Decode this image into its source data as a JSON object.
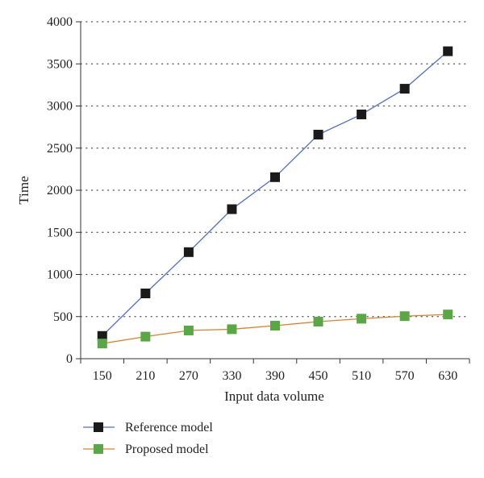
{
  "chart_data": {
    "type": "line",
    "title": "",
    "xlabel": "Input data volume",
    "ylabel": "Time",
    "x": [
      150,
      210,
      270,
      330,
      390,
      450,
      510,
      570,
      630
    ],
    "xticks": [
      "150",
      "210",
      "270",
      "330",
      "390",
      "450",
      "510",
      "570",
      "630"
    ],
    "yticks": [
      "0",
      "500",
      "1000",
      "1500",
      "2000",
      "2500",
      "3000",
      "3500",
      "4000"
    ],
    "ylim": [
      0,
      4000
    ],
    "grid": "horizontal dotted",
    "legend_position": "bottom-left",
    "series": [
      {
        "name": "Reference model",
        "values": [
          270,
          775,
          1265,
          1775,
          2155,
          2660,
          2900,
          3205,
          3650
        ],
        "line_color": "#4e6fc4",
        "marker_color": "#1a1a1a",
        "marker": "square"
      },
      {
        "name": "Proposed model",
        "values": [
          180,
          262,
          335,
          350,
          392,
          440,
          475,
          505,
          525
        ],
        "line_color": "#d9822b",
        "marker_color": "#59a845",
        "marker": "square"
      }
    ]
  }
}
